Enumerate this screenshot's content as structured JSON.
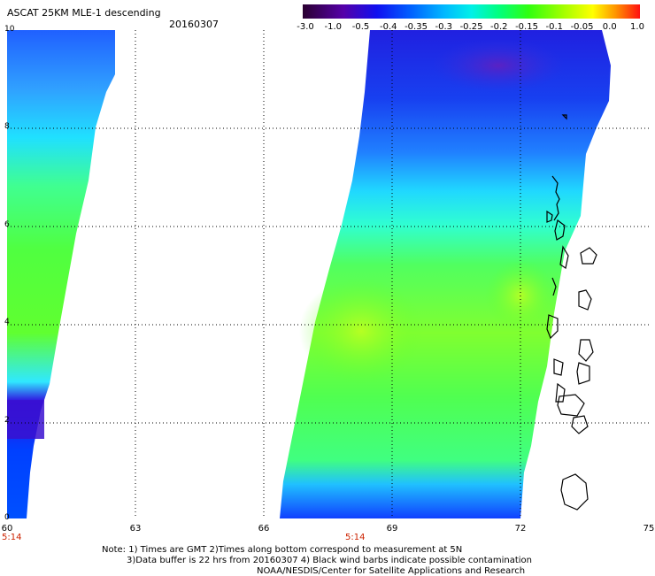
{
  "header": {
    "title": "ASCAT 25KM MLE-1 descending",
    "date": "20160307"
  },
  "colorbar": {
    "labels": [
      "-3.0",
      "-1.0",
      "-0.5",
      "-0.4",
      "-0.35",
      "-0.3",
      "-0.25",
      "-0.2",
      "-0.15",
      "-0.1",
      "-0.05",
      "0.0",
      "1.0"
    ],
    "colors": [
      "#3c0046",
      "#5a00a0",
      "#2000e0",
      "#0040ff",
      "#0090ff",
      "#00e0ff",
      "#00ff90",
      "#20ff20",
      "#80ff00",
      "#d0ff00",
      "#ffff00",
      "#ff9000",
      "#ff2000"
    ]
  },
  "axes": {
    "y_ticks": [
      "10",
      "8",
      "6",
      "4",
      "2",
      "0"
    ],
    "x_ticks": [
      "60",
      "63",
      "66",
      "69",
      "72",
      "75"
    ],
    "times": [
      "5:14",
      "5:14"
    ]
  },
  "notes": [
    "Note: 1) Times are GMT 2)Times along bottom correspond to measurement at 5N",
    "3)Data buffer is 22 hrs from 20160307 4) Black wind barbs indicate possible contamination",
    "NOAA/NESDIS/Center for Satellite Applications and Research"
  ]
}
